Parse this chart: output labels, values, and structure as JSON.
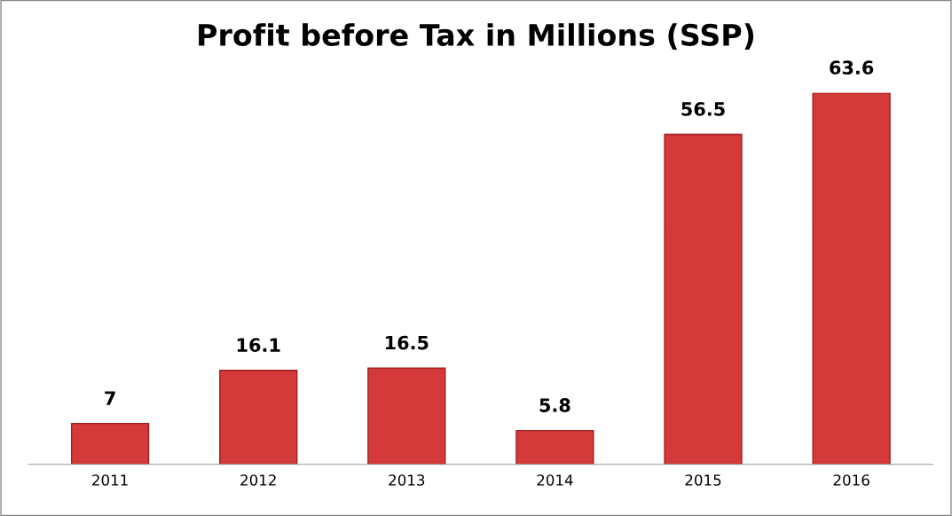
{
  "chart_data": {
    "type": "bar",
    "title": "Profit before Tax in Millions (SSP)",
    "categories": [
      "2011",
      "2012",
      "2013",
      "2014",
      "2015",
      "2016"
    ],
    "values": [
      7,
      16.1,
      16.5,
      5.8,
      56.5,
      63.6
    ],
    "color": "#d43a3a",
    "data_labels": true,
    "grid": false,
    "legend": false
  }
}
